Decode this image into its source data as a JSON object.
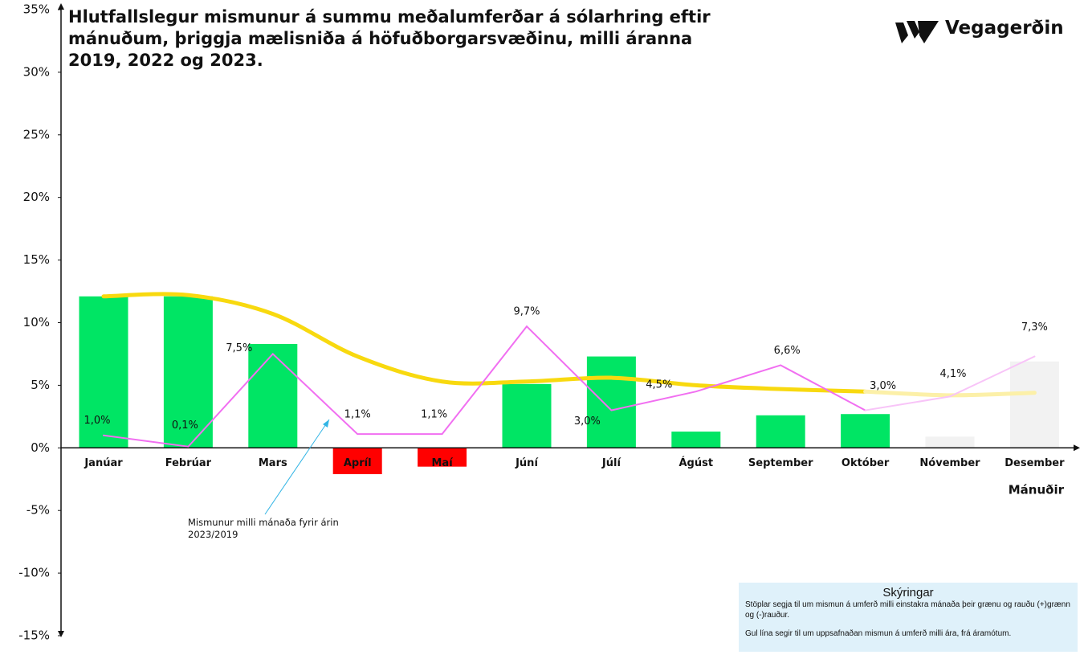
{
  "logo": "Vegagerðin",
  "chart_data": {
    "type": "bar",
    "title": "Hlutfallslegur mismunur á summu meðalumferðar á sólarhring eftir mánuðum, þriggja mælisniða á höfuðborgarsvæðinu, milli áranna 2019, 2022 og 2023.",
    "x_label": "Mánuðir",
    "annotation": "Mismunur milli mánaða fyrir árin 2023/2019",
    "legend_box": {
      "title": "Skýringar",
      "lines": [
        "Stöplar segja til um mismun á umferð milli einstakra mánaða  þeir grænu og rauðu (+)grænn og (-)rauður.",
        "Gul lína segir til um uppsafnaðan mismun á umferð milli ára, frá áramótum."
      ]
    },
    "categories": [
      "Janúar",
      "Febrúar",
      "Mars",
      "Apríl",
      "Maí",
      "Júní",
      "Júlí",
      "Ágúst",
      "September",
      "Október",
      "Nóvember",
      "Desember"
    ],
    "values": [
      12.1,
      12.1,
      8.3,
      -2.1,
      -1.5,
      5.1,
      7.3,
      1.3,
      2.6,
      2.7,
      0.9,
      6.9
    ],
    "colors": [
      "#00e564",
      "#00e564",
      "#00e564",
      "#ff0000",
      "#ff0000",
      "#00e564",
      "#00e564",
      "#00e564",
      "#00e564",
      "#00e564",
      "#f2f2f2",
      "#f2f2f2"
    ],
    "lines": [
      {
        "values": [
          12.1,
          12.2,
          10.7,
          7.3,
          5.3,
          5.3,
          5.6,
          5.0,
          4.7,
          4.5,
          4.2,
          4.4
        ],
        "colors": [
          "#f8d90f",
          "#f8d90f",
          "#f8d90f",
          "#f8d90f",
          "#f8d90f",
          "#f8d90f",
          "#f8d90f",
          "#f8d90f",
          "#f8d90f",
          "#f8d90f",
          "#fcf0a8",
          "#fcf0a8"
        ]
      },
      {
        "values": [
          1.0,
          0.1,
          7.5,
          1.1,
          1.1,
          9.7,
          3.0,
          4.5,
          6.6,
          3.0,
          4.1,
          7.3
        ],
        "value_labels": [
          "1,0%",
          "0,1%",
          "7,5%",
          "1,1%",
          "1,1%",
          "9,7%",
          "3,0%",
          "4,5%",
          "6,6%",
          "3,0%",
          "4,1%",
          "7,3%"
        ],
        "colors": [
          "#f16ff1",
          "#f16ff1",
          "#f16ff1",
          "#f16ff1",
          "#f16ff1",
          "#f16ff1",
          "#f16ff1",
          "#f16ff1",
          "#f16ff1",
          "#f16ff1",
          "#f8c4f8",
          "#f8c4f8"
        ]
      }
    ],
    "ylim": [
      -15,
      35
    ],
    "yticks": [
      {
        "value": -15,
        "label": "-15%"
      },
      {
        "value": -10,
        "label": "-10%"
      },
      {
        "value": -5,
        "label": "-5%"
      },
      {
        "value": 0,
        "label": "0%"
      },
      {
        "value": 5,
        "label": "5%"
      },
      {
        "value": 10,
        "label": "10%"
      },
      {
        "value": 15,
        "label": "15%"
      },
      {
        "value": 20,
        "label": "20%"
      },
      {
        "value": 25,
        "label": "25%"
      },
      {
        "value": 30,
        "label": "30%"
      },
      {
        "value": 35,
        "label": "35%"
      }
    ],
    "grid": false
  }
}
